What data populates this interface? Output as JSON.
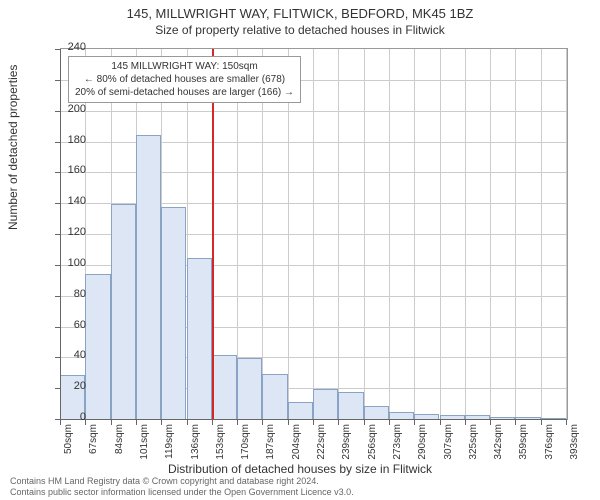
{
  "title": "145, MILLWRIGHT WAY, FLITWICK, BEDFORD, MK45 1BZ",
  "subtitle": "Size of property relative to detached houses in Flitwick",
  "ylabel": "Number of detached properties",
  "xlabel": "Distribution of detached houses by size in Flitwick",
  "footer_line1": "Contains HM Land Registry data © Crown copyright and database right 2024.",
  "footer_line2": "Contains public sector information licensed under the Open Government Licence v3.0.",
  "annotation": {
    "line1": "145 MILLWRIGHT WAY: 150sqm",
    "line2": "← 80% of detached houses are smaller (678)",
    "line3": "20% of semi-detached houses are larger (166) →"
  },
  "chart": {
    "type": "histogram",
    "ylim": [
      0,
      240
    ],
    "ytick_step": 20,
    "xlim_labels": [
      "50sqm",
      "67sqm",
      "84sqm",
      "101sqm",
      "119sqm",
      "136sqm",
      "153sqm",
      "170sqm",
      "187sqm",
      "204sqm",
      "222sqm",
      "239sqm",
      "256sqm",
      "273sqm",
      "290sqm",
      "307sqm",
      "325sqm",
      "342sqm",
      "359sqm",
      "376sqm",
      "393sqm"
    ],
    "values": [
      29,
      95,
      140,
      185,
      138,
      105,
      42,
      40,
      30,
      12,
      20,
      18,
      9,
      5,
      4,
      3,
      3,
      2,
      2,
      1
    ],
    "bar_fill": "#dce6f4",
    "bar_stroke": "#8aa3c4",
    "ref_line_color": "#d62728",
    "ref_line_bin_index": 6,
    "background_color": "#ffffff",
    "grid_color": "#cccccc",
    "axis_color": "#666666",
    "title_fontsize": 13,
    "label_fontsize": 12,
    "tick_fontsize": 11
  }
}
